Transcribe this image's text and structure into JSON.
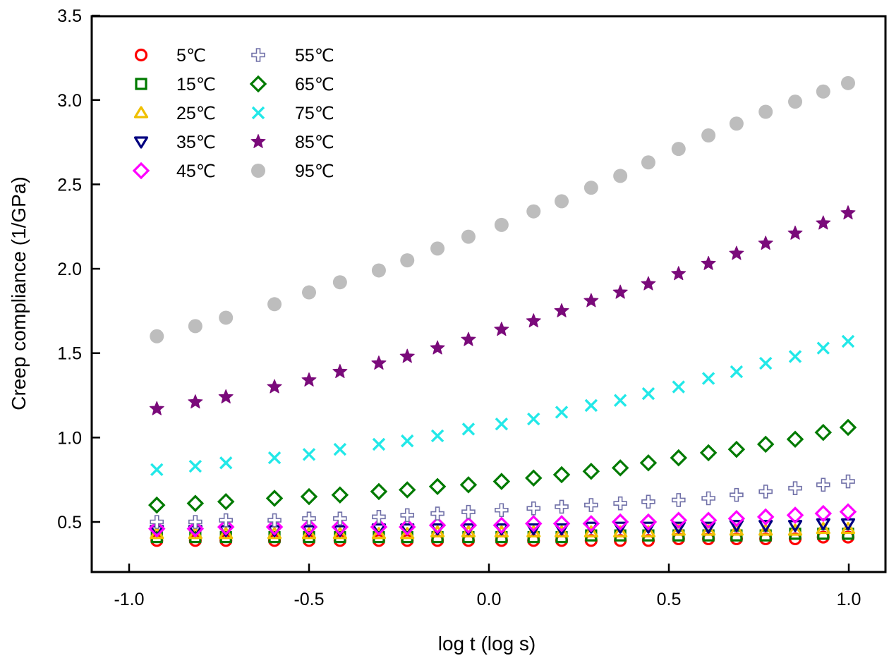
{
  "chart_data": {
    "type": "scatter",
    "title": "",
    "xlabel": "log t (log s)",
    "ylabel": "Creep  compliance (1/GPa)",
    "xlim": [
      -1.1,
      1.1
    ],
    "ylim": [
      0.29,
      3.5
    ],
    "xticks": [
      -1.0,
      -0.5,
      0.0,
      0.5,
      1.0
    ],
    "xtick_labels": [
      "-1.0",
      "-0.5",
      "0.0",
      "0.5",
      "1.0"
    ],
    "yticks": [
      0.5,
      1.0,
      1.5,
      2.0,
      2.5,
      3.0,
      3.5
    ],
    "ytick_labels": [
      "0.5",
      "1.0",
      "1.5",
      "2.0",
      "2.5",
      "3.0",
      "3.5"
    ],
    "grid": false,
    "legend_position": "top-left",
    "legend_columns": 2,
    "x": [
      -0.923,
      -0.816,
      -0.731,
      -0.596,
      -0.5,
      -0.414,
      -0.306,
      -0.227,
      -0.143,
      -0.057,
      0.035,
      0.124,
      0.202,
      0.284,
      0.365,
      0.443,
      0.527,
      0.61,
      0.688,
      0.769,
      0.851,
      0.929,
      0.998
    ],
    "series": [
      {
        "name": "5℃",
        "marker": "circle-open",
        "color": "#ff0000",
        "values": [
          0.39,
          0.39,
          0.39,
          0.39,
          0.39,
          0.39,
          0.39,
          0.39,
          0.39,
          0.39,
          0.39,
          0.39,
          0.39,
          0.39,
          0.39,
          0.39,
          0.4,
          0.4,
          0.4,
          0.4,
          0.4,
          0.41,
          0.41
        ]
      },
      {
        "name": "15℃",
        "marker": "square-open",
        "color": "#007a00",
        "values": [
          0.41,
          0.41,
          0.41,
          0.41,
          0.41,
          0.41,
          0.41,
          0.41,
          0.41,
          0.41,
          0.41,
          0.41,
          0.41,
          0.42,
          0.42,
          0.42,
          0.42,
          0.42,
          0.42,
          0.42,
          0.43,
          0.43,
          0.43
        ]
      },
      {
        "name": "25℃",
        "marker": "triangle-up-open",
        "color": "#f0c000",
        "values": [
          0.43,
          0.43,
          0.43,
          0.43,
          0.43,
          0.43,
          0.43,
          0.43,
          0.44,
          0.44,
          0.44,
          0.44,
          0.44,
          0.44,
          0.44,
          0.44,
          0.45,
          0.45,
          0.45,
          0.45,
          0.45,
          0.46,
          0.46
        ]
      },
      {
        "name": "35℃",
        "marker": "triangle-down-open",
        "color": "#000080",
        "values": [
          0.45,
          0.45,
          0.45,
          0.45,
          0.45,
          0.45,
          0.46,
          0.46,
          0.46,
          0.46,
          0.46,
          0.46,
          0.46,
          0.47,
          0.47,
          0.47,
          0.47,
          0.47,
          0.48,
          0.48,
          0.48,
          0.49,
          0.49
        ]
      },
      {
        "name": "45℃",
        "marker": "diamond-open",
        "color": "#ff00ff",
        "values": [
          0.46,
          0.46,
          0.47,
          0.47,
          0.47,
          0.47,
          0.47,
          0.47,
          0.48,
          0.48,
          0.48,
          0.49,
          0.49,
          0.49,
          0.5,
          0.5,
          0.51,
          0.51,
          0.52,
          0.53,
          0.54,
          0.55,
          0.56
        ]
      },
      {
        "name": "55℃",
        "marker": "plus-open",
        "color": "#7070a8",
        "values": [
          0.5,
          0.5,
          0.51,
          0.51,
          0.52,
          0.52,
          0.53,
          0.54,
          0.55,
          0.56,
          0.57,
          0.58,
          0.59,
          0.6,
          0.61,
          0.62,
          0.63,
          0.64,
          0.66,
          0.68,
          0.7,
          0.72,
          0.74
        ]
      },
      {
        "name": "65℃",
        "marker": "diamond-open",
        "color": "#007a00",
        "values": [
          0.6,
          0.61,
          0.62,
          0.64,
          0.65,
          0.66,
          0.68,
          0.69,
          0.71,
          0.72,
          0.74,
          0.76,
          0.78,
          0.8,
          0.82,
          0.85,
          0.88,
          0.91,
          0.93,
          0.96,
          0.99,
          1.03,
          1.06
        ]
      },
      {
        "name": "75℃",
        "marker": "x",
        "color": "#22e8e8",
        "values": [
          0.81,
          0.83,
          0.85,
          0.88,
          0.9,
          0.93,
          0.96,
          0.98,
          1.01,
          1.05,
          1.08,
          1.11,
          1.15,
          1.19,
          1.22,
          1.26,
          1.3,
          1.35,
          1.39,
          1.44,
          1.48,
          1.53,
          1.57
        ]
      },
      {
        "name": "85℃",
        "marker": "star-filled",
        "color": "#7a0a7a",
        "values": [
          1.17,
          1.21,
          1.24,
          1.3,
          1.34,
          1.39,
          1.44,
          1.48,
          1.53,
          1.58,
          1.64,
          1.69,
          1.75,
          1.81,
          1.86,
          1.91,
          1.97,
          2.03,
          2.09,
          2.15,
          2.21,
          2.27,
          2.33
        ]
      },
      {
        "name": "95℃",
        "marker": "circle-filled",
        "color": "#bdbdbd",
        "values": [
          1.6,
          1.66,
          1.71,
          1.79,
          1.86,
          1.92,
          1.99,
          2.05,
          2.12,
          2.19,
          2.26,
          2.34,
          2.4,
          2.48,
          2.55,
          2.63,
          2.71,
          2.79,
          2.86,
          2.93,
          2.99,
          3.05,
          3.1
        ]
      }
    ]
  }
}
